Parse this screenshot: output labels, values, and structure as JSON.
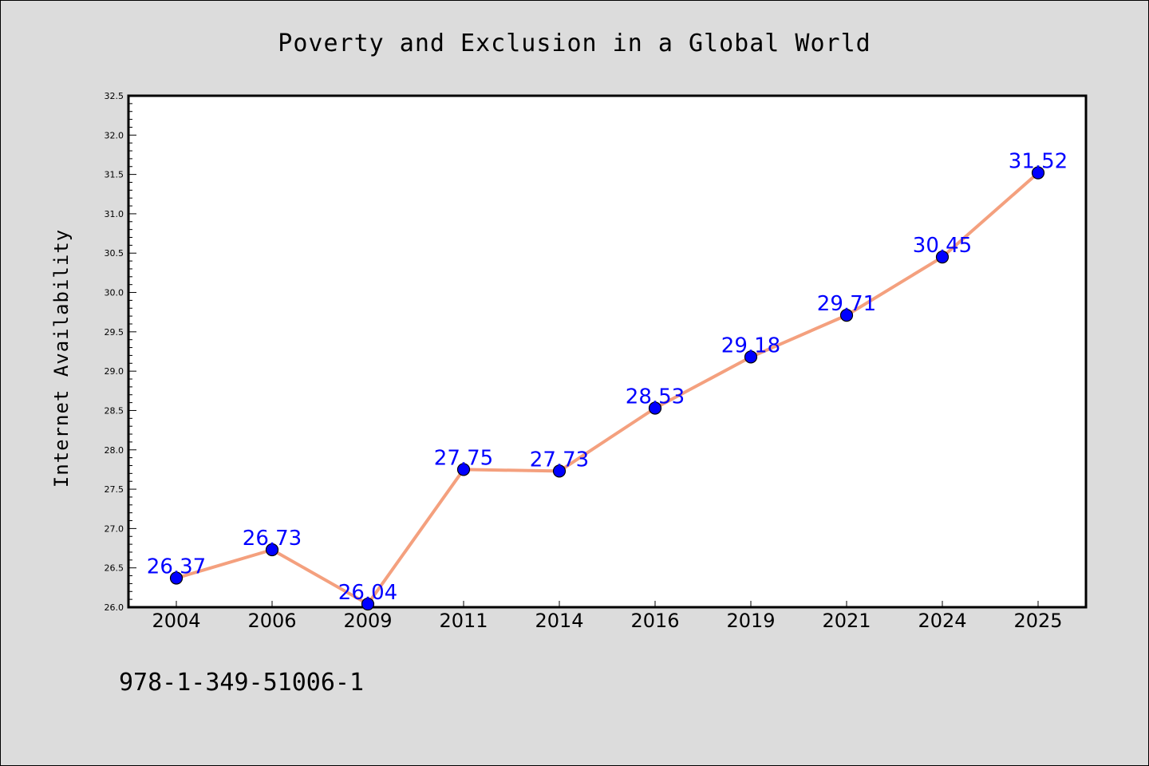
{
  "chart_data": {
    "type": "line",
    "title": "Poverty and Exclusion in a Global World",
    "xlabel": "",
    "ylabel": "Internet Availability",
    "categories": [
      "2004",
      "2006",
      "2009",
      "2011",
      "2014",
      "2016",
      "2019",
      "2021",
      "2024",
      "2025"
    ],
    "values": [
      26.37,
      26.73,
      26.04,
      27.75,
      27.73,
      28.53,
      29.18,
      29.71,
      30.45,
      31.52
    ],
    "data_labels": [
      "26.37",
      "26.73",
      "26.04",
      "27.75",
      "27.73",
      "28.53",
      "29.18",
      "29.71",
      "30.45",
      "31.52"
    ],
    "ylim": [
      26.0,
      32.5
    ],
    "yticks": [
      "26.0",
      "26.5",
      "27.0",
      "27.5",
      "28.0",
      "28.5",
      "29.0",
      "29.5",
      "30.0",
      "30.5",
      "31.0",
      "31.5",
      "32.0",
      "32.5"
    ],
    "grid": false,
    "legend": "none",
    "colors": {
      "line": "#f4a07e",
      "marker": "#0000ff",
      "marker_edge": "#000000",
      "data_label": "#0000ff",
      "background": "#dcdcdc",
      "plot_area": "#ffffff"
    }
  },
  "annotation": "978-1-349-51006-1"
}
